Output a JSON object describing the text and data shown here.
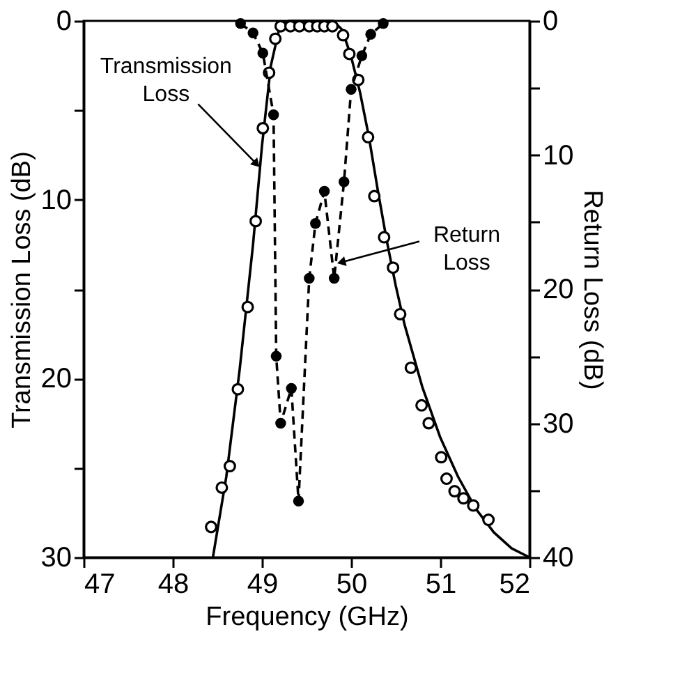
{
  "chart_data": {
    "type": "line",
    "xlabel": "Frequency (GHz)",
    "ylabel": "Transmission Loss (dB)",
    "y2label": "Return Loss (dB)",
    "xlim": [
      47,
      52
    ],
    "xticks": [
      47,
      48,
      49,
      50,
      51,
      52
    ],
    "ylim": [
      30,
      0
    ],
    "yticks": [
      0,
      {
        "value": 5,
        "label": null
      },
      10,
      {
        "value": 15,
        "label": null
      },
      20,
      {
        "value": 25,
        "label": null
      },
      30
    ],
    "y2lim": [
      40,
      0
    ],
    "y2ticks": [
      0,
      {
        "value": 5,
        "label": null
      },
      10,
      {
        "value": 15,
        "label": null
      },
      20,
      {
        "value": 25,
        "label": null
      },
      30,
      {
        "value": 35,
        "label": null
      },
      40
    ],
    "grid": false,
    "annotations": [
      {
        "text": "Transmission Loss",
        "x": 48.94,
        "y": 8.0
      },
      {
        "text": "Return Loss",
        "x": 49.89,
        "y": 13.5
      }
    ],
    "series": [
      {
        "type": "line",
        "color": "#000000",
        "line_style": "solid",
        "marker": "none",
        "x": [
          48.45,
          48.6,
          48.75,
          48.9,
          49.0,
          49.1,
          49.2,
          49.3,
          49.8,
          49.9,
          50.0,
          50.1,
          50.2,
          50.3,
          50.4,
          50.5,
          50.6,
          50.8,
          51.0,
          51.2,
          51.4,
          51.6,
          51.8,
          52.0
        ],
        "values": [
          30,
          25.5,
          19.5,
          12.5,
          7,
          2.5,
          0.3,
          0,
          0,
          0.5,
          2,
          4,
          6.5,
          9.5,
          12.3,
          14.8,
          17,
          20.5,
          23.3,
          25.5,
          27.3,
          28.6,
          29.5,
          30
        ]
      },
      {
        "type": "scatter",
        "color": "#000000",
        "marker": "circle",
        "x": [
          48.43,
          48.55,
          48.64,
          48.73,
          48.84,
          48.93,
          49.01,
          49.08,
          49.15,
          49.21,
          49.32,
          49.42,
          49.53,
          49.62,
          49.7,
          49.79,
          49.91,
          49.98,
          50.08,
          50.19,
          50.26,
          50.37,
          50.47,
          50.55,
          50.67,
          50.79,
          50.87,
          51.01,
          51.07,
          51.16,
          51.26,
          51.37,
          51.54
        ],
        "values": [
          28.3,
          26.1,
          24.9,
          20.6,
          16.0,
          11.2,
          6.0,
          2.9,
          1.0,
          0.3,
          0.3,
          0.3,
          0.3,
          0.3,
          0.3,
          0.3,
          0.8,
          1.85,
          3.3,
          6.5,
          9.8,
          12.1,
          13.8,
          16.4,
          19.4,
          21.5,
          22.5,
          24.4,
          25.6,
          26.3,
          26.7,
          27.1,
          27.9
        ]
      },
      {
        "type": "line",
        "axis": "y2",
        "color": "#000000",
        "line_style": "dashed",
        "marker": "circle",
        "x": [
          48.76,
          48.9,
          49.01,
          49.13,
          49.16,
          49.21,
          49.33,
          49.41,
          49.53,
          49.6,
          49.7,
          49.81,
          49.92,
          50.0,
          50.12,
          50.22,
          50.36
        ],
        "values": [
          0.2,
          0.9,
          2.4,
          7.0,
          25.0,
          30.0,
          27.4,
          35.8,
          19.2,
          15.1,
          12.7,
          19.2,
          12.0,
          5.1,
          2.6,
          1.0,
          0.2
        ]
      }
    ]
  }
}
